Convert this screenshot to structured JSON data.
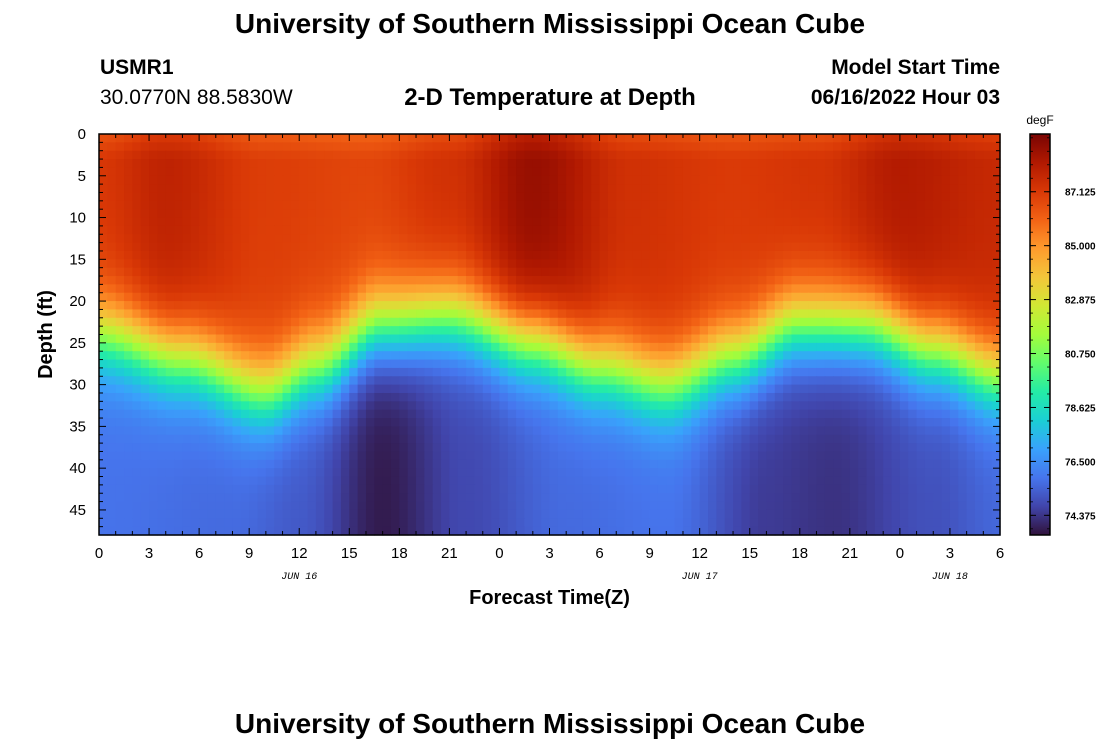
{
  "header": {
    "title": "University of Southern Mississippi Ocean Cube",
    "station_id": "USMR1",
    "station_coords": "30.0770N  88.5830W",
    "subtitle": "2-D Temperature at Depth",
    "model_label": "Model Start Time",
    "model_time": "06/16/2022 Hour 03"
  },
  "footer": {
    "title": "University of Southern Mississippi Ocean Cube"
  },
  "chart_data": {
    "type": "heatmap",
    "title": "2-D Temperature at Depth",
    "xlabel": "Forecast Time(Z)",
    "ylabel": "Depth (ft)",
    "x_hours_range": [
      0,
      54
    ],
    "x_tick_labels": [
      "0",
      "3",
      "6",
      "9",
      "12",
      "15",
      "18",
      "21",
      "0",
      "3",
      "6",
      "9",
      "12",
      "15",
      "18",
      "21",
      "0",
      "3",
      "6"
    ],
    "date_labels": [
      {
        "text": "JUN 16",
        "hour": 12
      },
      {
        "text": "JUN 17",
        "hour": 36
      },
      {
        "text": "JUN 18",
        "hour": 51
      }
    ],
    "y_range": [
      0,
      48
    ],
    "y_ticks": [
      0,
      5,
      10,
      15,
      20,
      25,
      30,
      35,
      40,
      45
    ],
    "colorbar": {
      "unit": "degF",
      "min": 73.6,
      "max": 89.4,
      "tick_labels": [
        "87.125",
        "85.000",
        "82.875",
        "80.750",
        "78.625",
        "76.500",
        "74.375"
      ],
      "colors": [
        "#30123b",
        "#4145ab",
        "#4675ed",
        "#39a2fc",
        "#1bcfd4",
        "#24eca6",
        "#61fc6c",
        "#a4fc3b",
        "#d1e834",
        "#f3c63a",
        "#fe9b2d",
        "#f36315",
        "#d93806",
        "#b11901",
        "#7a0402"
      ]
    },
    "surface_temp_degF": [
      {
        "hour": 0,
        "value": 87.2
      },
      {
        "hour": 4,
        "value": 87.9
      },
      {
        "hour": 10,
        "value": 87.0
      },
      {
        "hour": 16,
        "value": 86.8
      },
      {
        "hour": 21,
        "value": 87.4
      },
      {
        "hour": 26,
        "value": 88.8
      },
      {
        "hour": 32,
        "value": 87.4
      },
      {
        "hour": 38,
        "value": 87.1
      },
      {
        "hour": 43,
        "value": 87.3
      },
      {
        "hour": 48,
        "value": 88.2
      },
      {
        "hour": 54,
        "value": 87.7
      }
    ],
    "thermocline_depth_ft": [
      {
        "hour": 0,
        "value": 24
      },
      {
        "hour": 5,
        "value": 27
      },
      {
        "hour": 10,
        "value": 31
      },
      {
        "hour": 13,
        "value": 28
      },
      {
        "hour": 17,
        "value": 23
      },
      {
        "hour": 21,
        "value": 22
      },
      {
        "hour": 26,
        "value": 25
      },
      {
        "hour": 30,
        "value": 28
      },
      {
        "hour": 34,
        "value": 30
      },
      {
        "hour": 38,
        "value": 27
      },
      {
        "hour": 42,
        "value": 23
      },
      {
        "hour": 46,
        "value": 23
      },
      {
        "hour": 50,
        "value": 26
      },
      {
        "hour": 54,
        "value": 29
      }
    ],
    "bottom_temp_degF": [
      {
        "hour": 0,
        "value": 75.8
      },
      {
        "hour": 8,
        "value": 75.6
      },
      {
        "hour": 12,
        "value": 75.2
      },
      {
        "hour": 17,
        "value": 73.8
      },
      {
        "hour": 22,
        "value": 74.8
      },
      {
        "hour": 28,
        "value": 75.6
      },
      {
        "hour": 34,
        "value": 75.8
      },
      {
        "hour": 40,
        "value": 74.5
      },
      {
        "hour": 44,
        "value": 74.3
      },
      {
        "hour": 50,
        "value": 75.0
      },
      {
        "hour": 54,
        "value": 75.5
      }
    ]
  }
}
